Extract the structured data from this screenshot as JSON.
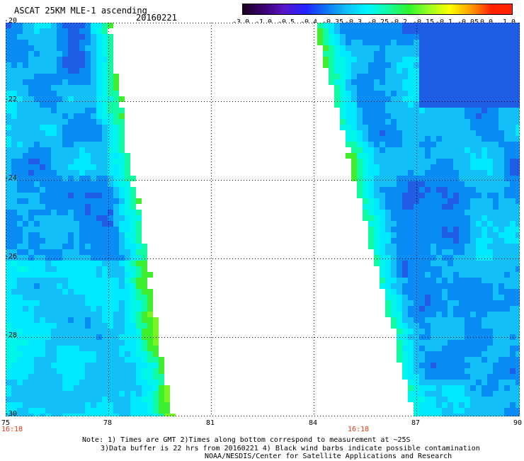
{
  "header": {
    "title": "ASCAT 25KM MLE-1 ascending",
    "date": "20160221"
  },
  "colorbar": {
    "labels": [
      "-3.0",
      "-1.0",
      "-0.5",
      "-0.4",
      "-0.35",
      "-0.3",
      "-0.25",
      "-0.2",
      "-0.15",
      "-0.1",
      "-0.05",
      "0.0",
      "1.0"
    ],
    "colors": [
      "#1c0023",
      "#3b0070",
      "#5a16c6",
      "#2222ff",
      "#0c72f5",
      "#11bff6",
      "#00f5ff",
      "#12fba3",
      "#2ef42a",
      "#9bff22",
      "#ffff00",
      "#ff9d00",
      "#ff2200"
    ]
  },
  "map": {
    "lon_range": [
      75,
      90
    ],
    "lat_range": [
      -30,
      -20
    ],
    "lat_ticks": [
      "-20",
      "-22",
      "-24",
      "-26",
      "-28",
      "-30"
    ],
    "lon_ticks": [
      "75",
      "78",
      "81",
      "84",
      "87",
      "90"
    ],
    "swath_left_time": "16:18",
    "swath_right_time": "16:18",
    "legend_meaning": "MLE-1 contamination index, grid overlay dotted"
  },
  "notes": {
    "line1": "Note: 1) Times are GMT 2)Times along bottom correspond to measurement at ~25S",
    "line2": "3)Data buffer is 22 hrs from 20160221 4) Black wind barbs indicate possible contamination",
    "line3": "NOAA/NESDIS/Center for Satellite Applications and Research"
  }
}
